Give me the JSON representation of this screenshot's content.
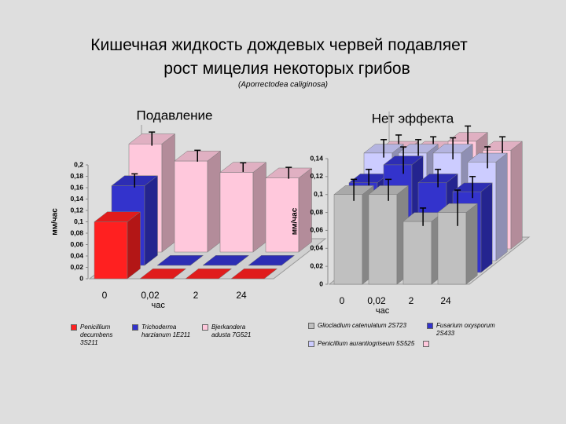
{
  "title": "Кишечная жидкость дождевых червей подавляет рост мицелия некоторых грибов",
  "subtitle": "(Aporrectodea caliginosa)",
  "chart_data": [
    {
      "type": "bar3d",
      "title": "Подавление",
      "y_label": "мм/час",
      "x_label": "час",
      "categories": [
        "0",
        "0,02",
        "2",
        "24"
      ],
      "ylim": [
        0,
        0.2
      ],
      "yticks": [
        0,
        {
          "value": 0.02,
          "label": "0,02"
        },
        {
          "value": 0.04,
          "label": "0,04"
        },
        {
          "value": 0.06,
          "label": "0,06"
        },
        {
          "value": 0.08,
          "label": "0,08"
        },
        {
          "value": 0.1,
          "label": "0,1"
        },
        {
          "value": 0.12,
          "label": "0,12"
        },
        {
          "value": 0.14,
          "label": "0,14"
        },
        {
          "value": 0.16,
          "label": "0,16"
        },
        {
          "value": 0.18,
          "label": "0,18"
        },
        {
          "value": 0.2,
          "label": "0,2"
        }
      ],
      "series": [
        {
          "name": "Penicillium decumbens 3S211",
          "color": "#ff2020",
          "values": [
            0.1,
            0,
            0,
            0
          ]
        },
        {
          "name": "Trichoderma harzianum 1E211",
          "color": "#3333cc",
          "values": [
            0.14,
            0,
            0,
            0
          ],
          "errors": [
            0.012,
            null,
            null,
            null
          ]
        },
        {
          "name": "Bjerkandera adusta 7G521",
          "color": "#ffc8dc",
          "values": [
            0.19,
            0.16,
            0.14,
            0.13
          ],
          "errors": [
            0.012,
            0.01,
            0.008,
            0.01
          ]
        }
      ]
    },
    {
      "type": "bar3d",
      "title": "Нет эффекта",
      "y_label": "мм/час",
      "x_label": "час",
      "categories": [
        "0",
        "0,02",
        "2",
        "24"
      ],
      "ylim": [
        0,
        0.14
      ],
      "yticks": [
        0,
        {
          "value": 0.02,
          "label": "0,02"
        },
        {
          "value": 0.04,
          "label": "0,04"
        },
        {
          "value": 0.06,
          "label": "0,06"
        },
        {
          "value": 0.08,
          "label": "0,08"
        },
        {
          "value": 0.1,
          "label": "0,1"
        },
        {
          "value": 0.12,
          "label": "0,12"
        },
        {
          "value": 0.14,
          "label": "0,14"
        }
      ],
      "series": [
        {
          "name": "Gliocladium catenulatum 2S723",
          "color": "#c0c0c0",
          "values": [
            0.1,
            0.1,
            0.07,
            0.08
          ],
          "errors": [
            0.012,
            0.012,
            0.01,
            0.02
          ]
        },
        {
          "name": "Fusarium oxysporum 2S433",
          "color": "#3333cc",
          "values": [
            0.1,
            0.12,
            0.1,
            0.09
          ],
          "errors": [
            0.01,
            0.015,
            0.01,
            0.012
          ]
        },
        {
          "name": "Penicillium aurantiogriseum 5S525",
          "color": "#ccccff",
          "values": [
            0.12,
            0.12,
            0.12,
            0.11
          ],
          "errors": [
            0.01,
            0.01,
            0.012,
            0.012
          ]
        },
        {
          "color": "#ffc8dc",
          "values": [
            0.11,
            0.11,
            0.12,
            0.11
          ],
          "errors": [
            0.012,
            0.01,
            0.012,
            0.01
          ]
        }
      ]
    }
  ]
}
